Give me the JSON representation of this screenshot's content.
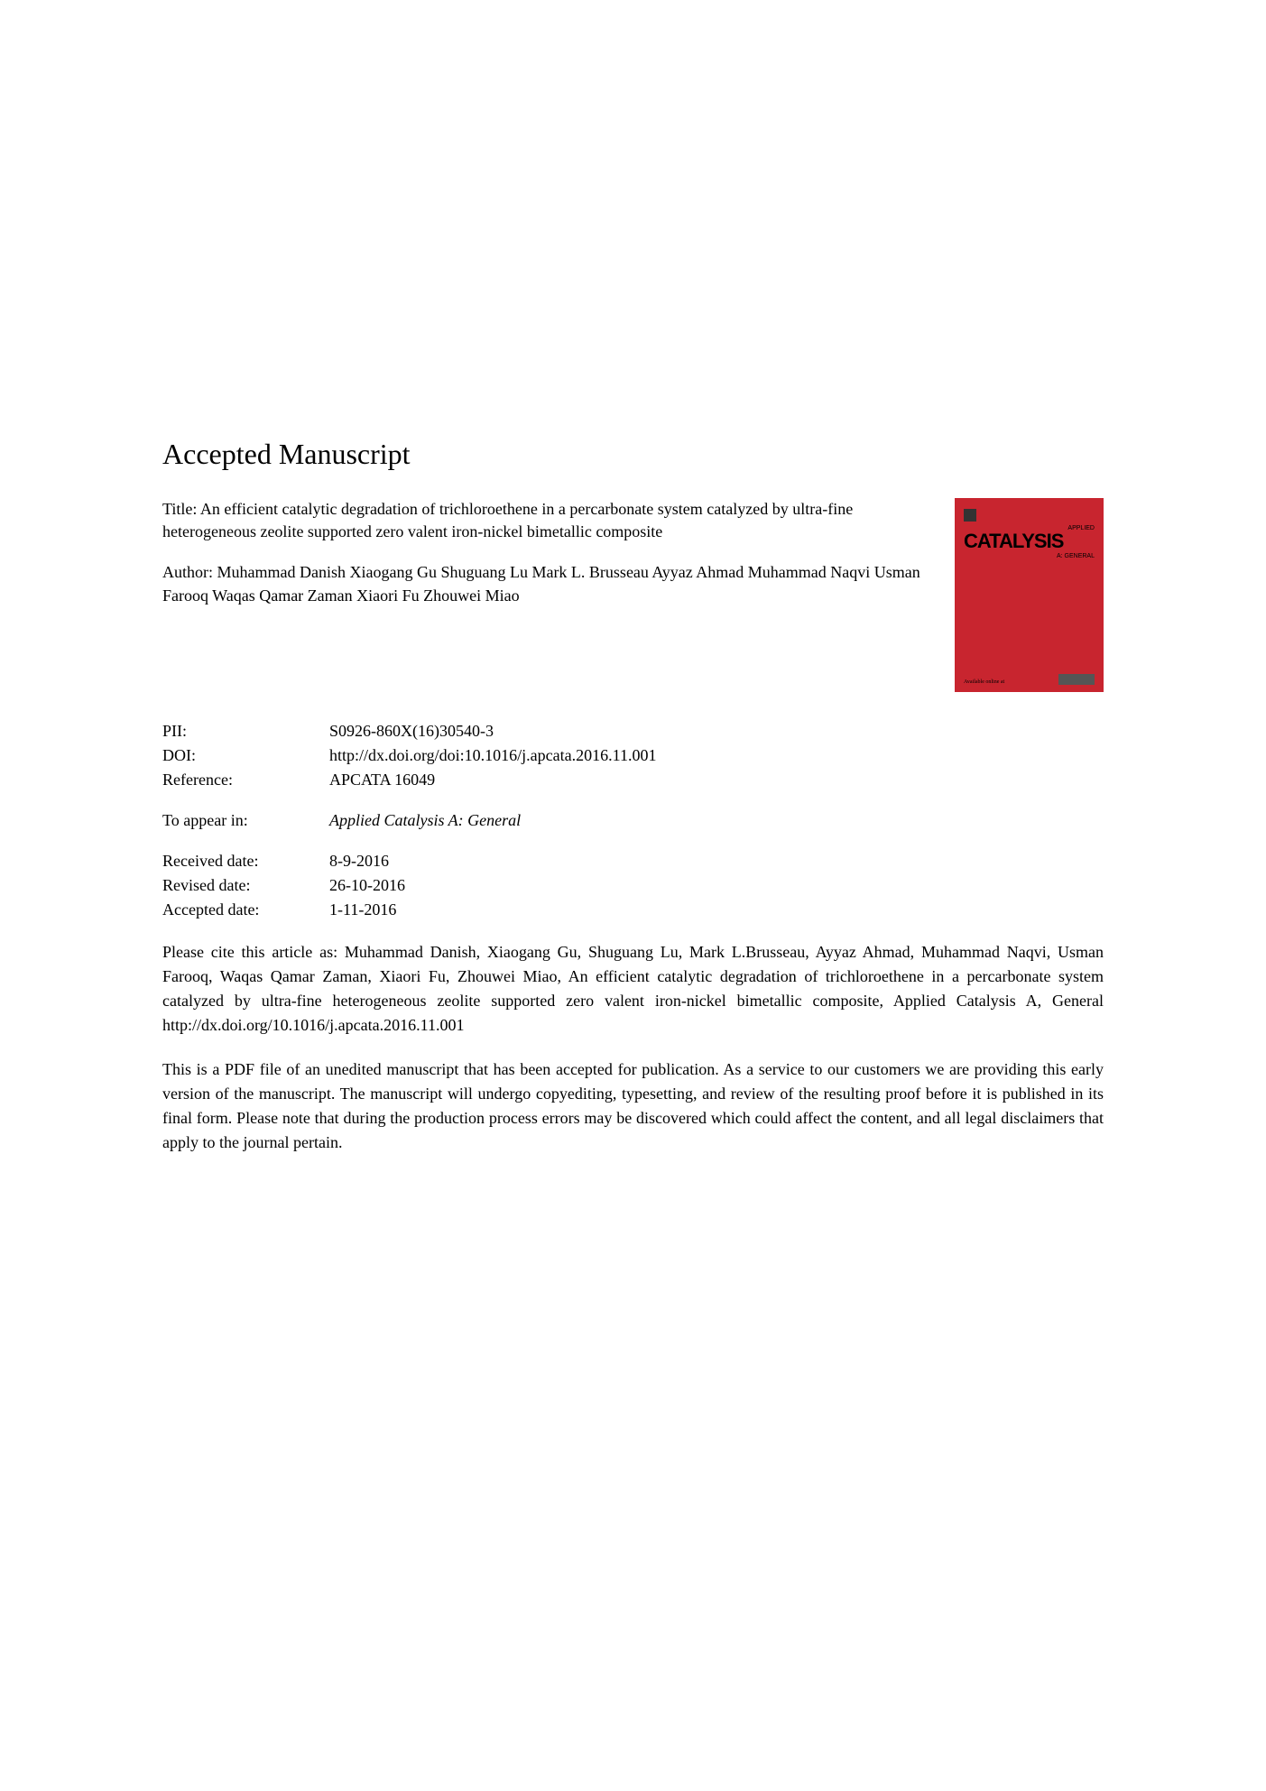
{
  "heading": "Accepted Manuscript",
  "title_text": "Title: An efficient catalytic degradation of trichloroethene in a percarbonate system catalyzed by ultra-fine heterogeneous zeolite supported zero valent iron-nickel bimetallic composite",
  "author_text": "Author: Muhammad Danish Xiaogang Gu Shuguang Lu Mark L. Brusseau Ayyaz Ahmad Muhammad Naqvi Usman Farooq Waqas Qamar Zaman Xiaori Fu Zhouwei Miao",
  "cover": {
    "applied_label": "APPLIED",
    "catalysis_label": "CATALYSIS",
    "general_label": "A: GENERAL",
    "bottom_left": "Available online at",
    "bg_color": "#c8252f"
  },
  "info": {
    "pii_label": "PII:",
    "pii_value": "S0926-860X(16)30540-3",
    "doi_label": "DOI:",
    "doi_value": "http://dx.doi.org/doi:10.1016/j.apcata.2016.11.001",
    "reference_label": "Reference:",
    "reference_value": "APCATA 16049",
    "appear_label": "To appear in:",
    "appear_value": "Applied Catalysis A: General",
    "received_label": "Received date:",
    "received_value": "8-9-2016",
    "revised_label": "Revised date:",
    "revised_value": "26-10-2016",
    "accepted_label": "Accepted date:",
    "accepted_value": "1-11-2016"
  },
  "citation_text": "Please cite this article as: Muhammad Danish, Xiaogang Gu, Shuguang Lu, Mark L.Brusseau, Ayyaz Ahmad, Muhammad Naqvi, Usman Farooq, Waqas Qamar Zaman, Xiaori Fu, Zhouwei Miao, An efficient catalytic degradation of trichloroethene in a percarbonate system catalyzed by ultra-fine heterogeneous zeolite supported zero valent iron-nickel bimetallic composite, Applied Catalysis A, General http://dx.doi.org/10.1016/j.apcata.2016.11.001",
  "disclaimer_text": "This is a PDF file of an unedited manuscript that has been accepted for publication. As a service to our customers we are providing this early version of the manuscript. The manuscript will undergo copyediting, typesetting, and review of the resulting proof before it is published in its final form. Please note that during the production process errors may be discovered which could affect the content, and all legal disclaimers that apply to the journal pertain."
}
